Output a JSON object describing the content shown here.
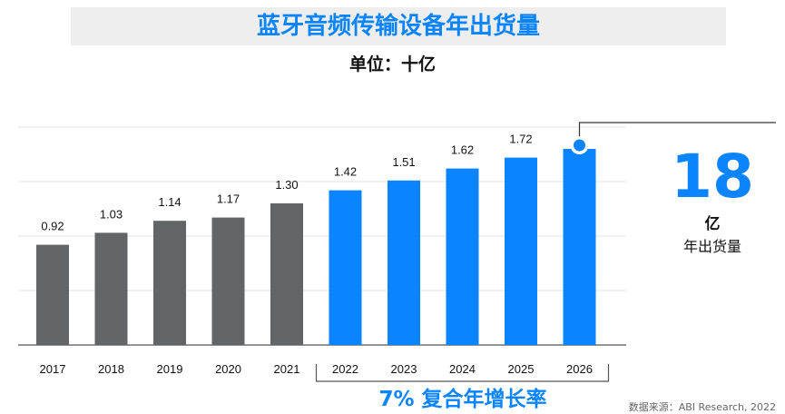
{
  "header": {
    "title": "蓝牙音频传输设备年出货量",
    "unit": "单位：十亿"
  },
  "callout": {
    "value": "18",
    "unit": "亿",
    "caption": "年出货量"
  },
  "footer": {
    "cagr": "7% 复合年增长率",
    "source": "数据来源：ABI Research, 2022"
  },
  "colors": {
    "actual": "#636466",
    "forecast": "#0a84ff",
    "grid": "#e3e3e3"
  },
  "chart_data": {
    "type": "bar",
    "categories": [
      "2017",
      "2018",
      "2019",
      "2020",
      "2021",
      "2022",
      "2023",
      "2024",
      "2025",
      "2026"
    ],
    "values": [
      0.92,
      1.03,
      1.14,
      1.17,
      1.3,
      1.42,
      1.51,
      1.62,
      1.72,
      1.8
    ],
    "labels": [
      "0.92",
      "1.03",
      "1.14",
      "1.17",
      "1.30",
      "1.42",
      "1.51",
      "1.62",
      "1.72",
      ""
    ],
    "forecast_start_index": 5,
    "ylim": [
      0,
      2.0
    ],
    "grid": true
  }
}
